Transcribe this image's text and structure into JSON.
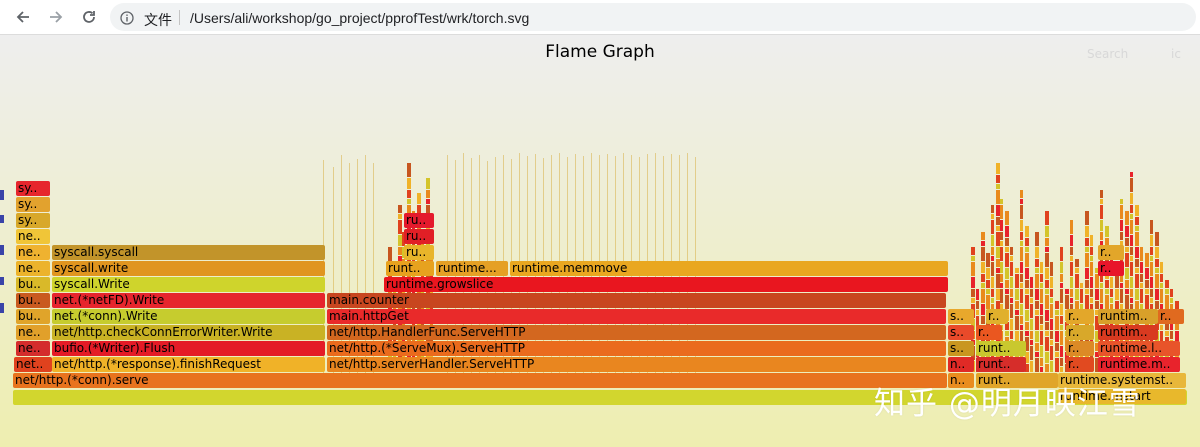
{
  "browser": {
    "page_info_label": "文件",
    "url": "/Users/ali/workshop/go_project/pprofTest/wrk/torch.svg"
  },
  "graph": {
    "title": "Flame Graph",
    "search_label": "Search",
    "ic_label": "ic"
  },
  "watermark": "知乎 @明月映江雪",
  "colors": {
    "background_top": "#eeeeee",
    "background_bottom": "#eeeeb0",
    "frame_red": "#e8232b",
    "frame_orange": "#e98a1c",
    "frame_yellow": "#d4c42a",
    "frame_dark_orange": "#c7561f"
  },
  "frames": [
    {
      "label": "",
      "color": "#d2d62e"
    },
    {
      "label": "net/http.(*conn).serve",
      "color": "#e8731e"
    },
    {
      "label": "net..",
      "color": "#e0421e"
    },
    {
      "label": "net/http.(*response).finishRequest",
      "color": "#f0b228"
    },
    {
      "label": "net/http.serverHandler.ServeHTTP",
      "color": "#e9861f"
    },
    {
      "label": "ne..",
      "color": "#d42c2c"
    },
    {
      "label": "bufio.(*Writer).Flush",
      "color": "#e41b26"
    },
    {
      "label": "net/http.(*ServeMux).ServeHTTP",
      "color": "#ea6b1d"
    },
    {
      "label": "ne..",
      "color": "#e1a02a"
    },
    {
      "label": "net/http.checkConnErrorWriter.Write",
      "color": "#c9b224"
    },
    {
      "label": "net/http.HandlerFunc.ServeHTTP",
      "color": "#d3671f"
    },
    {
      "label": "bu..",
      "color": "#e0a42a"
    },
    {
      "label": "net.(*conn).Write",
      "color": "#c6cc2e"
    },
    {
      "label": "main.httpGet",
      "color": "#e92a2a"
    },
    {
      "label": "bu..",
      "color": "#c95a20"
    },
    {
      "label": "net.(*netFD).Write",
      "color": "#e6252d"
    },
    {
      "label": "main.counter",
      "color": "#c8461f"
    },
    {
      "label": "bu..",
      "color": "#d9b929"
    },
    {
      "label": "syscall.Write",
      "color": "#cfd42c"
    },
    {
      "label": "runtime.growslice",
      "color": "#e9161f"
    },
    {
      "label": "ne..",
      "color": "#ecb32c"
    },
    {
      "label": "syscall.write",
      "color": "#e0951f"
    },
    {
      "label": "runt..",
      "color": "#e7a21f"
    },
    {
      "label": "runtime...",
      "color": "#e5a025"
    },
    {
      "label": "runtime.memmove",
      "color": "#e9a720"
    },
    {
      "label": "ne..",
      "color": "#efb230"
    },
    {
      "label": "syscall.syscall",
      "color": "#c2942a"
    },
    {
      "label": "ne..",
      "color": "#f0c538"
    },
    {
      "label": "sy..",
      "color": "#d8a82a"
    },
    {
      "label": "sy..",
      "color": "#e2a22e"
    },
    {
      "label": "sy..",
      "color": "#e6262d"
    },
    {
      "label": "ru..",
      "color": "#e41a2c"
    },
    {
      "label": "ru..",
      "color": "#e11f26"
    },
    {
      "label": "ru..",
      "color": "#e8b52a"
    },
    {
      "label": "n..",
      "color": "#e98c1f"
    },
    {
      "label": "runt..",
      "color": "#e0a52a"
    },
    {
      "label": "runtime.systemst..",
      "color": "#e8b73a"
    },
    {
      "label": "n..",
      "color": "#e02a26"
    },
    {
      "label": "runt..",
      "color": "#d62d2a"
    },
    {
      "label": "r..",
      "color": "#e14a20"
    },
    {
      "label": "runtime.m..",
      "color": "#e8232c"
    },
    {
      "label": "s..",
      "color": "#c9961f"
    },
    {
      "label": "runt..",
      "color": "#c9c82e"
    },
    {
      "label": "r..",
      "color": "#dc8a26"
    },
    {
      "label": "runtime.l..",
      "color": "#e8542a"
    },
    {
      "label": "s..",
      "color": "#e94a2a"
    },
    {
      "label": "r..",
      "color": "#ea5720"
    },
    {
      "label": "r..",
      "color": "#d8a82a"
    },
    {
      "label": "runtim..",
      "color": "#d83a20"
    },
    {
      "label": "s..",
      "color": "#e8a82c"
    },
    {
      "label": "r..",
      "color": "#e0b02c"
    },
    {
      "label": "r..",
      "color": "#e3a72a"
    },
    {
      "label": "runtim..",
      "color": "#d8a02a"
    },
    {
      "label": "r..",
      "color": "#e06a1f"
    },
    {
      "label": "r..",
      "color": "#e8152a"
    },
    {
      "label": "r..",
      "color": "#e2a62a"
    },
    {
      "label": "runtime.mstart",
      "color": "#e8b82c"
    }
  ]
}
